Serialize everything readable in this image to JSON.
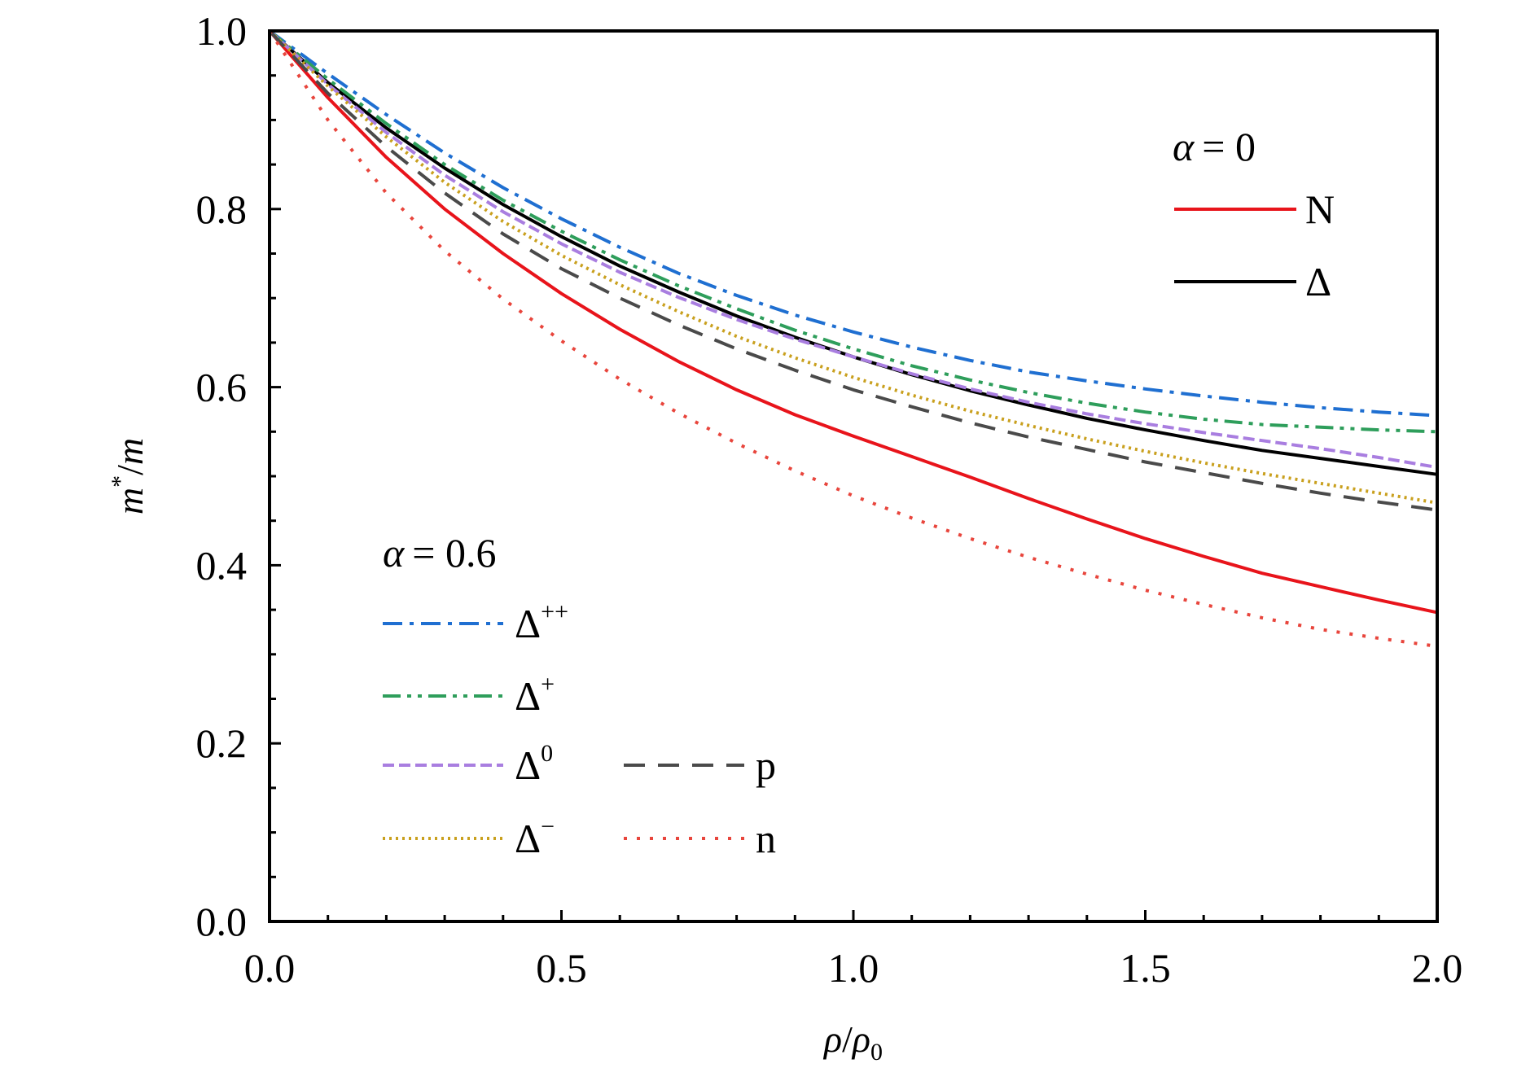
{
  "chart_data": {
    "type": "line",
    "title": "",
    "xlabel": {
      "base": "ρ",
      "slash": "/",
      "sub_base": "ρ",
      "sub": "0"
    },
    "ylabel": {
      "base": "m",
      "sup": "*",
      "slash": "/",
      "tail": "m"
    },
    "xlim": [
      0.0,
      2.0
    ],
    "ylim": [
      0.0,
      1.0
    ],
    "x_ticks": [
      "0.0",
      "0.5",
      "1.0",
      "1.5",
      "2.0"
    ],
    "y_ticks": [
      "0.0",
      "0.2",
      "0.4",
      "0.6",
      "0.8",
      "1.0"
    ],
    "x": [
      0.0,
      0.1,
      0.2,
      0.3,
      0.4,
      0.5,
      0.6,
      0.7,
      0.8,
      0.9,
      1.0,
      1.1,
      1.2,
      1.3,
      1.4,
      1.5,
      1.6,
      1.7,
      1.8,
      1.9,
      2.0
    ],
    "legend_top": {
      "alpha_symbol": "α",
      "alpha_value": "= 0",
      "position": "top-right",
      "series": [
        "N",
        "Delta"
      ]
    },
    "legend_bottom": {
      "alpha_symbol": "α",
      "alpha_value": "= 0.6",
      "position": "bottom-left",
      "series": [
        "Delta++",
        "Delta+",
        "Delta0",
        "Delta-",
        "p",
        "n"
      ]
    },
    "series": [
      {
        "id": "N",
        "name": "N",
        "group": "alpha=0",
        "label_base": "N",
        "label_sup": "",
        "color": "#e8141b",
        "dash": "solid",
        "values": [
          1.0,
          0.925,
          0.858,
          0.8,
          0.75,
          0.705,
          0.665,
          0.629,
          0.597,
          0.569,
          0.545,
          0.522,
          0.499,
          0.475,
          0.452,
          0.43,
          0.41,
          0.391,
          0.376,
          0.361,
          0.347
        ]
      },
      {
        "id": "Delta",
        "name": "Δ",
        "group": "alpha=0",
        "label_base": "Δ",
        "label_sup": "",
        "color": "#000000",
        "dash": "solid",
        "values": [
          1.0,
          0.942,
          0.891,
          0.846,
          0.805,
          0.769,
          0.736,
          0.707,
          0.68,
          0.656,
          0.634,
          0.614,
          0.596,
          0.58,
          0.565,
          0.552,
          0.54,
          0.529,
          0.52,
          0.511,
          0.502
        ]
      },
      {
        "id": "Delta++",
        "name": "Δ++",
        "group": "alpha=0.6",
        "label_base": "Δ",
        "label_sup": "++",
        "color": "#1f6fd1",
        "dash": "dashdot",
        "values": [
          1.0,
          0.952,
          0.906,
          0.863,
          0.824,
          0.789,
          0.757,
          0.728,
          0.703,
          0.681,
          0.662,
          0.645,
          0.63,
          0.617,
          0.607,
          0.598,
          0.59,
          0.583,
          0.577,
          0.572,
          0.568
        ]
      },
      {
        "id": "Delta+",
        "name": "Δ+",
        "group": "alpha=0.6",
        "label_base": "Δ",
        "label_sup": "+",
        "color": "#2e9e5b",
        "dash": "dashdotdot",
        "values": [
          1.0,
          0.946,
          0.896,
          0.85,
          0.81,
          0.775,
          0.743,
          0.714,
          0.688,
          0.664,
          0.643,
          0.624,
          0.608,
          0.594,
          0.582,
          0.572,
          0.564,
          0.558,
          0.555,
          0.552,
          0.55
        ]
      },
      {
        "id": "Delta0",
        "name": "Δ0",
        "group": "alpha=0.6",
        "label_base": "Δ",
        "label_sup": "0",
        "color": "#a97ee0",
        "dash": "shortdash",
        "values": [
          1.0,
          0.94,
          0.886,
          0.838,
          0.797,
          0.761,
          0.729,
          0.701,
          0.676,
          0.654,
          0.634,
          0.615,
          0.598,
          0.583,
          0.57,
          0.559,
          0.549,
          0.54,
          0.531,
          0.521,
          0.51
        ]
      },
      {
        "id": "Delta-",
        "name": "Δ−",
        "group": "alpha=0.6",
        "label_base": "Δ",
        "label_sup": "−",
        "color": "#c9a01e",
        "dash": "dotted",
        "values": [
          1.0,
          0.938,
          0.881,
          0.83,
          0.786,
          0.748,
          0.715,
          0.685,
          0.657,
          0.633,
          0.611,
          0.591,
          0.573,
          0.557,
          0.542,
          0.528,
          0.515,
          0.503,
          0.492,
          0.481,
          0.47
        ]
      },
      {
        "id": "p",
        "name": "p",
        "group": "alpha=0.6",
        "label_base": "p",
        "label_sup": "",
        "color": "#4a4a4a",
        "dash": "dashed",
        "values": [
          1.0,
          0.93,
          0.87,
          0.818,
          0.772,
          0.733,
          0.7,
          0.67,
          0.643,
          0.619,
          0.597,
          0.578,
          0.56,
          0.544,
          0.53,
          0.516,
          0.504,
          0.492,
          0.481,
          0.471,
          0.462
        ]
      },
      {
        "id": "n",
        "name": "n",
        "group": "alpha=0.6",
        "label_base": "n",
        "label_sup": "",
        "color": "#e8453c",
        "dash": "sparsedot",
        "values": [
          1.0,
          0.9,
          0.818,
          0.753,
          0.699,
          0.652,
          0.609,
          0.571,
          0.537,
          0.506,
          0.478,
          0.453,
          0.43,
          0.409,
          0.39,
          0.372,
          0.356,
          0.341,
          0.328,
          0.318,
          0.309
        ]
      }
    ]
  }
}
